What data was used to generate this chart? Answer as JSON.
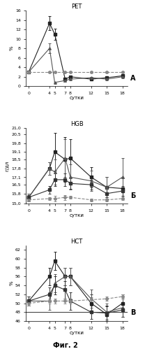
{
  "panel_A": {
    "title": "РЕТ",
    "xlabel": "сутки",
    "ylabel": "%",
    "xlim": [
      -0.5,
      19
    ],
    "ylim": [
      0,
      16
    ],
    "yticks": [
      0,
      2,
      4,
      6,
      8,
      10,
      12,
      14,
      16
    ],
    "xticks": [
      0,
      4,
      5,
      7,
      8,
      12,
      15,
      18
    ],
    "series": [
      {
        "x": [
          0,
          4,
          5,
          7,
          8,
          12,
          15,
          18
        ],
        "y": [
          3.0,
          13.3,
          11.0,
          1.5,
          2.0,
          1.5,
          1.8,
          2.2
        ],
        "yerr": [
          0.2,
          1.5,
          1.2,
          0.3,
          0.3,
          0.3,
          0.2,
          0.2
        ],
        "marker": "s",
        "linestyle": "-",
        "color": "#222222"
      },
      {
        "x": [
          0,
          4,
          5,
          7,
          8,
          12,
          15,
          18
        ],
        "y": [
          3.0,
          8.0,
          0.8,
          1.2,
          1.5,
          1.8,
          1.5,
          2.0
        ],
        "yerr": [
          0.2,
          1.0,
          0.2,
          0.2,
          0.2,
          0.2,
          0.2,
          0.2
        ],
        "marker": "^",
        "linestyle": "-",
        "color": "#555555"
      },
      {
        "x": [
          0,
          4,
          5,
          7,
          8,
          12,
          15,
          18
        ],
        "y": [
          3.0,
          3.0,
          3.0,
          3.0,
          3.0,
          3.0,
          3.0,
          3.0
        ],
        "yerr": [
          0.1,
          0.1,
          0.1,
          0.1,
          0.1,
          0.1,
          0.1,
          0.1
        ],
        "marker": "o",
        "linestyle": "--",
        "color": "#888888"
      }
    ]
  },
  "panel_B": {
    "title": "HGB",
    "xlabel": "сутки",
    "ylabel": "г/дл",
    "xlim": [
      -0.5,
      19
    ],
    "ylim": [
      15.0,
      21.0
    ],
    "yticks": [
      15.0,
      15.8,
      16.5,
      17.1,
      17.8,
      18.5,
      19.1,
      19.8,
      20.5,
      21.0
    ],
    "ytick_labels": [
      "15,0",
      "15,8",
      "16,5",
      "17,1",
      "17,8",
      "18,5",
      "19,1",
      "19,8",
      "20,5",
      "21,0"
    ],
    "xticks": [
      0,
      4,
      5,
      7,
      8,
      12,
      15,
      18
    ],
    "series": [
      {
        "x": [
          0,
          4,
          5,
          7,
          8,
          12,
          15,
          18
        ],
        "y": [
          15.5,
          17.8,
          19.1,
          18.5,
          18.6,
          17.1,
          16.3,
          16.2
        ],
        "yerr": [
          0.3,
          0.5,
          1.5,
          1.8,
          1.5,
          0.8,
          0.8,
          0.8
        ],
        "marker": "s",
        "linestyle": "-",
        "color": "#222222"
      },
      {
        "x": [
          0,
          4,
          5,
          7,
          8,
          12,
          15,
          18
        ],
        "y": [
          15.5,
          17.8,
          17.5,
          18.6,
          17.1,
          16.8,
          16.3,
          17.1
        ],
        "yerr": [
          0.3,
          0.5,
          1.0,
          1.5,
          1.0,
          0.8,
          0.8,
          1.5
        ],
        "marker": "^",
        "linestyle": "-",
        "color": "#555555"
      },
      {
        "x": [
          0,
          4,
          5,
          7,
          8,
          12,
          15,
          18
        ],
        "y": [
          15.5,
          16.1,
          16.9,
          16.9,
          16.6,
          16.5,
          15.8,
          16.0
        ],
        "yerr": [
          0.2,
          0.3,
          0.5,
          0.5,
          0.4,
          0.4,
          0.4,
          0.4
        ],
        "marker": "s",
        "linestyle": "-",
        "color": "#333333"
      },
      {
        "x": [
          0,
          4,
          5,
          7,
          8,
          12,
          15,
          18
        ],
        "y": [
          15.3,
          15.4,
          15.4,
          15.5,
          15.5,
          15.3,
          15.3,
          15.4
        ],
        "yerr": [
          0.1,
          0.1,
          0.2,
          0.2,
          0.1,
          0.1,
          0.1,
          0.1
        ],
        "marker": "o",
        "linestyle": "--",
        "color": "#888888"
      }
    ]
  },
  "panel_C": {
    "title": "HCT",
    "xlabel": "сутки",
    "ylabel": "%",
    "xlim": [
      -0.5,
      19
    ],
    "ylim": [
      46,
      63
    ],
    "yticks": [
      46,
      48,
      50,
      52,
      54,
      56,
      58,
      60,
      62
    ],
    "xticks": [
      0,
      4,
      5,
      7,
      8,
      12,
      15,
      18
    ],
    "hline": 48,
    "series": [
      {
        "x": [
          0,
          4,
          5,
          7,
          8,
          12,
          15,
          18
        ],
        "y": [
          50.5,
          56.0,
          59.5,
          56.0,
          56.0,
          50.0,
          47.5,
          50.0
        ],
        "yerr": [
          1.0,
          2.0,
          2.0,
          2.0,
          2.0,
          2.0,
          2.0,
          2.0
        ],
        "marker": "s",
        "linestyle": "-",
        "color": "#222222"
      },
      {
        "x": [
          0,
          4,
          5,
          7,
          8,
          12,
          15,
          18
        ],
        "y": [
          50.5,
          50.5,
          54.5,
          56.0,
          56.0,
          51.0,
          48.0,
          49.0
        ],
        "yerr": [
          1.0,
          2.0,
          2.0,
          2.0,
          2.0,
          2.0,
          2.0,
          2.0
        ],
        "marker": "^",
        "linestyle": "-",
        "color": "#555555"
      },
      {
        "x": [
          0,
          4,
          5,
          7,
          8,
          12,
          15,
          18
        ],
        "y": [
          50.5,
          52.0,
          54.0,
          53.0,
          50.5,
          48.0,
          47.8,
          48.5
        ],
        "yerr": [
          1.0,
          1.5,
          2.0,
          2.0,
          2.0,
          1.5,
          1.5,
          1.5
        ],
        "marker": "s",
        "linestyle": "-",
        "color": "#333333"
      },
      {
        "x": [
          0,
          4,
          5,
          7,
          8,
          12,
          15,
          18
        ],
        "y": [
          50.0,
          50.5,
          50.5,
          50.5,
          50.5,
          50.8,
          51.0,
          51.5
        ],
        "yerr": [
          0.5,
          0.5,
          0.5,
          0.5,
          0.5,
          0.5,
          0.5,
          0.5
        ],
        "marker": "o",
        "linestyle": "--",
        "color": "#888888"
      }
    ]
  },
  "fig_caption": "Фиг. 2",
  "panel_labels": [
    "A",
    "Б",
    "В"
  ]
}
